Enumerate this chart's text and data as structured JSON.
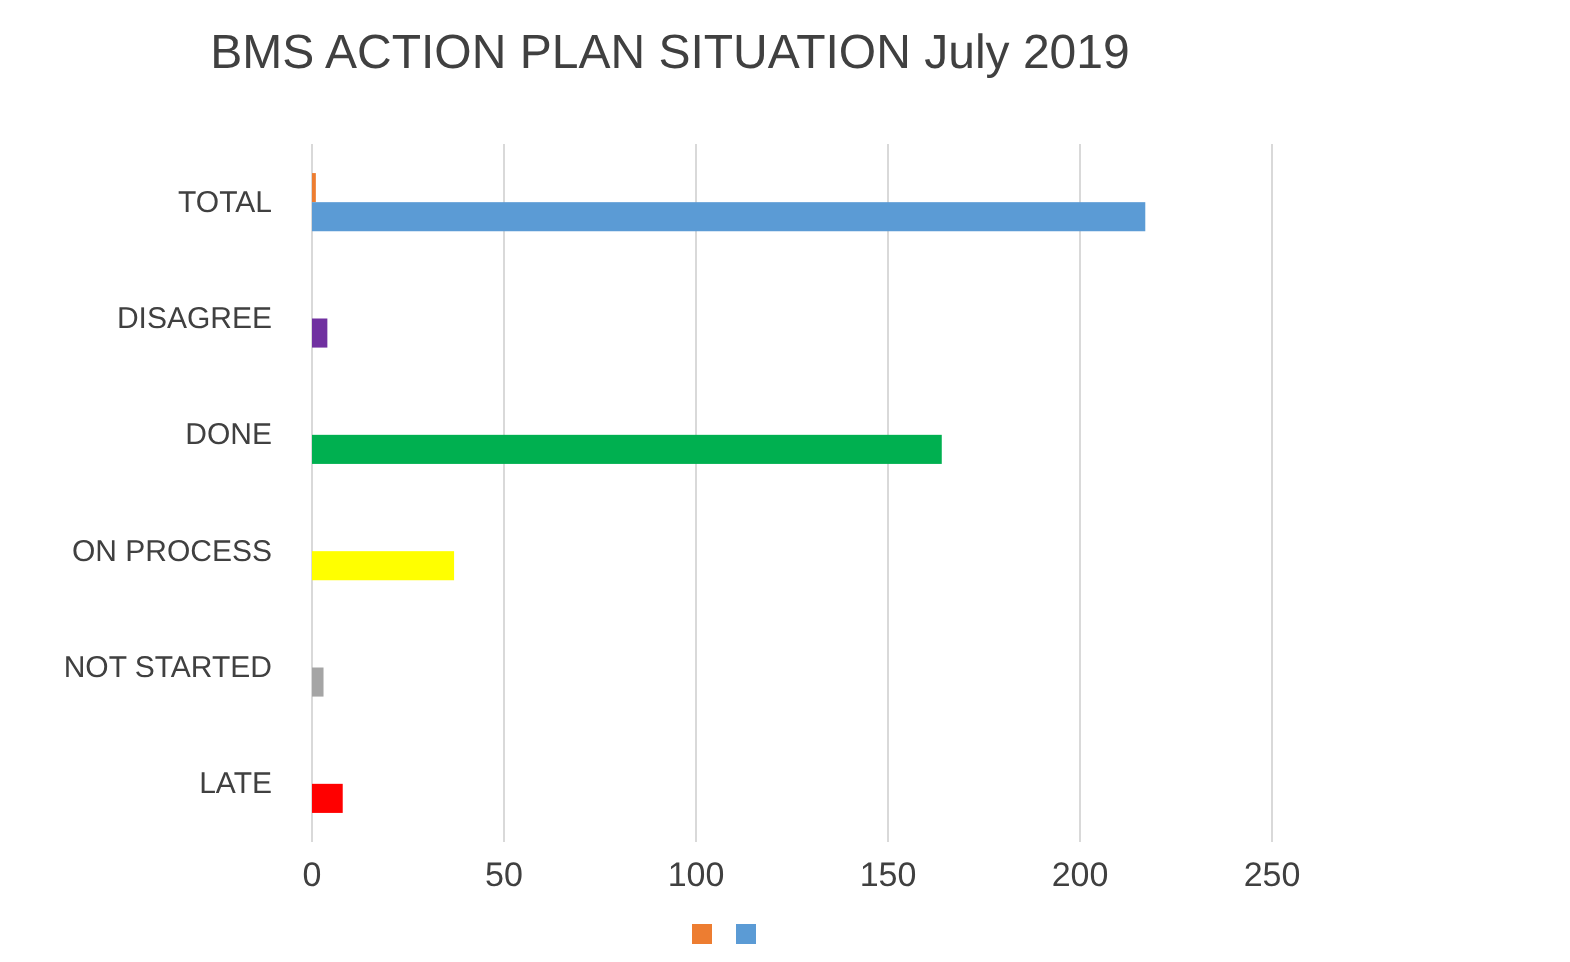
{
  "chart_data": {
    "type": "bar",
    "title": "BMS ACTION PLAN SITUATION July 2019",
    "orientation": "horizontal",
    "categories": [
      "TOTAL",
      "DISAGREE",
      "DONE",
      "ON PROCESS",
      "NOT STARTED",
      "LATE"
    ],
    "series": [
      {
        "color": "#ed7d31",
        "values": [
          1,
          null,
          null,
          null,
          null,
          null
        ]
      },
      {
        "color": "#5b9bd5",
        "colors": [
          "#5b9bd5",
          "#7030a0",
          "#00b050",
          "#ffff00",
          "#a5a5a5",
          "#ff0000"
        ],
        "values": [
          217,
          4,
          164,
          37,
          3,
          8
        ]
      }
    ],
    "xlim": [
      0,
      250
    ],
    "xticks": [
      0,
      50,
      100,
      150,
      200,
      250
    ],
    "grid": "x"
  }
}
